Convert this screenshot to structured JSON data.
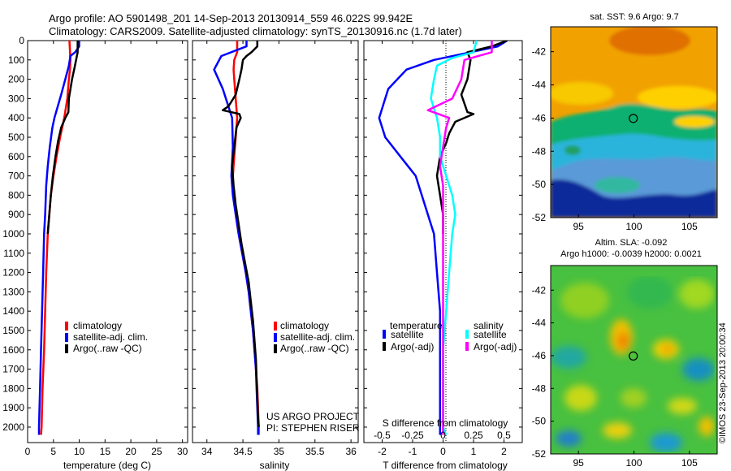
{
  "header": {
    "line1": "Argo profile: AO 5901498_201 14-Sep-2013 20130914_559 46.022S 99.942E",
    "line2": "Climatology: CARS2009. Satellite-adjusted climatology: synTS_20130916.nc (1.7d later)"
  },
  "colors": {
    "climatology": "#ff0000",
    "satellite": "#0000ff",
    "argo": "#000000",
    "sal_satellite": "#00ffff",
    "sal_argo": "#ff00ff"
  },
  "chart_data": [
    {
      "type": "line",
      "panel": "temperature",
      "xlabel": "temperature (deg C)",
      "ylabel": "",
      "xlim": [
        0,
        31
      ],
      "ylim": [
        2080,
        0
      ],
      "y_reversed": true,
      "xticks": [
        0,
        5,
        10,
        15,
        20,
        25,
        30
      ],
      "yticks": [
        0,
        100,
        200,
        300,
        400,
        500,
        600,
        700,
        800,
        900,
        1000,
        1100,
        1200,
        1300,
        1400,
        1500,
        1600,
        1700,
        1800,
        1900,
        2000
      ],
      "legend": [
        "climatology",
        "satellite-adj. clim.",
        "Argo(..raw -QC)"
      ],
      "series": [
        {
          "name": "climatology",
          "color": "#ff0000",
          "points": [
            [
              8.1,
              0
            ],
            [
              8.2,
              50
            ],
            [
              8.3,
              100
            ],
            [
              8.2,
              150
            ],
            [
              8.0,
              200
            ],
            [
              7.7,
              300
            ],
            [
              7.1,
              400
            ],
            [
              6.3,
              500
            ],
            [
              5.6,
              600
            ],
            [
              5.0,
              700
            ],
            [
              4.5,
              800
            ],
            [
              4.2,
              900
            ],
            [
              3.9,
              1000
            ],
            [
              3.6,
              1200
            ],
            [
              3.4,
              1400
            ],
            [
              3.2,
              1600
            ],
            [
              2.9,
              1800
            ],
            [
              2.7,
              2000
            ],
            [
              2.6,
              2040
            ]
          ]
        },
        {
          "name": "satellite-adj. clim.",
          "color": "#0000ff",
          "points": [
            [
              10.0,
              0
            ],
            [
              10.0,
              30
            ],
            [
              9.2,
              60
            ],
            [
              8.3,
              80
            ],
            [
              8.0,
              130
            ],
            [
              7.3,
              200
            ],
            [
              6.5,
              280
            ],
            [
              5.2,
              400
            ],
            [
              4.8,
              450
            ],
            [
              4.3,
              550
            ],
            [
              3.9,
              650
            ],
            [
              3.6,
              750
            ],
            [
              3.4,
              900
            ],
            [
              3.2,
              1000
            ],
            [
              3.0,
              1200
            ],
            [
              2.8,
              1400
            ],
            [
              2.6,
              1600
            ],
            [
              2.4,
              1800
            ],
            [
              2.2,
              2000
            ],
            [
              2.2,
              2040
            ]
          ]
        },
        {
          "name": "Argo(..raw -QC)",
          "color": "#000000",
          "points": [
            [
              9.7,
              0
            ],
            [
              9.7,
              60
            ],
            [
              9.4,
              100
            ],
            [
              9.1,
              140
            ],
            [
              8.6,
              200
            ],
            [
              8.0,
              300
            ],
            [
              7.9,
              370
            ],
            [
              7.3,
              400
            ],
            [
              6.5,
              450
            ],
            [
              5.9,
              520
            ],
            [
              5.4,
              600
            ],
            [
              4.9,
              700
            ],
            [
              4.5,
              800
            ],
            [
              4.2,
              900
            ],
            [
              3.9,
              1000
            ]
          ]
        }
      ]
    },
    {
      "type": "line",
      "panel": "salinity",
      "xlabel": "salinity",
      "ylabel": "",
      "xlim": [
        33.8,
        36.1
      ],
      "ylim": [
        2080,
        0
      ],
      "y_reversed": true,
      "xticks": [
        34,
        34.5,
        35,
        35.5,
        36
      ],
      "xticklabels": [
        "34",
        "34.5",
        "35",
        "35.5",
        "36"
      ],
      "legend": [
        "climatology",
        "satellite-adj. clim.",
        "Argo(..raw -QC)"
      ],
      "annotations": [
        "US ARGO PROJECT",
        "PI: STEPHEN RISER"
      ],
      "series": [
        {
          "name": "climatology",
          "color": "#ff0000",
          "points": [
            [
              34.42,
              0
            ],
            [
              34.42,
              60
            ],
            [
              34.38,
              100
            ],
            [
              34.37,
              150
            ],
            [
              34.38,
              200
            ],
            [
              34.4,
              300
            ],
            [
              34.42,
              400
            ],
            [
              34.4,
              500
            ],
            [
              34.38,
              600
            ],
            [
              34.36,
              700
            ],
            [
              34.37,
              800
            ],
            [
              34.4,
              900
            ],
            [
              34.44,
              1000
            ],
            [
              34.49,
              1100
            ],
            [
              34.54,
              1200
            ],
            [
              34.58,
              1300
            ],
            [
              34.61,
              1400
            ],
            [
              34.64,
              1500
            ],
            [
              34.66,
              1600
            ],
            [
              34.68,
              1700
            ],
            [
              34.7,
              1800
            ],
            [
              34.71,
              1900
            ],
            [
              34.72,
              2000
            ],
            [
              34.72,
              2040
            ]
          ]
        },
        {
          "name": "satellite-adj. clim.",
          "color": "#0000ff",
          "points": [
            [
              34.55,
              0
            ],
            [
              34.55,
              30
            ],
            [
              34.2,
              80
            ],
            [
              34.1,
              150
            ],
            [
              34.22,
              250
            ],
            [
              34.35,
              400
            ],
            [
              34.36,
              550
            ],
            [
              34.34,
              700
            ],
            [
              34.36,
              800
            ],
            [
              34.4,
              900
            ],
            [
              34.44,
              1000
            ],
            [
              34.49,
              1100
            ],
            [
              34.54,
              1200
            ],
            [
              34.58,
              1300
            ],
            [
              34.61,
              1400
            ],
            [
              34.64,
              1500
            ],
            [
              34.66,
              1600
            ],
            [
              34.68,
              1700
            ],
            [
              34.69,
              1800
            ],
            [
              34.7,
              1900
            ],
            [
              34.71,
              2000
            ],
            [
              34.71,
              2040
            ]
          ]
        },
        {
          "name": "Argo(..raw -QC)",
          "color": "#000000",
          "points": [
            [
              34.7,
              0
            ],
            [
              34.7,
              30
            ],
            [
              34.62,
              60
            ],
            [
              34.55,
              80
            ],
            [
              34.5,
              100
            ],
            [
              34.48,
              150
            ],
            [
              34.45,
              200
            ],
            [
              34.4,
              280
            ],
            [
              34.3,
              340
            ],
            [
              34.22,
              360
            ],
            [
              34.45,
              380
            ],
            [
              34.47,
              400
            ],
            [
              34.41,
              450
            ],
            [
              34.38,
              550
            ],
            [
              34.35,
              650
            ],
            [
              34.37,
              750
            ],
            [
              34.4,
              850
            ],
            [
              34.44,
              950
            ],
            [
              34.48,
              1050
            ],
            [
              34.53,
              1150
            ],
            [
              34.58,
              1250
            ],
            [
              34.61,
              1350
            ],
            [
              34.64,
              1450
            ],
            [
              34.66,
              1550
            ],
            [
              34.68,
              1650
            ],
            [
              34.69,
              1750
            ],
            [
              34.7,
              1850
            ],
            [
              34.71,
              1950
            ],
            [
              34.72,
              2000
            ]
          ]
        }
      ]
    },
    {
      "type": "line",
      "panel": "difference",
      "xlabel": "T difference from climatology",
      "xlabel_top": "S difference from climatology",
      "xlim": [
        -2.6,
        2.6
      ],
      "ylim": [
        2080,
        0
      ],
      "y_reversed": true,
      "xticks": [
        -2,
        -1,
        0,
        1,
        2
      ],
      "sticks": [
        "-0.5",
        "-0.25",
        "0",
        "0.25",
        "0.5"
      ],
      "legend_headers": [
        "temperature",
        "salinity"
      ],
      "legend": [
        "satellite",
        "Argo(-adj)",
        "satellite",
        "Argo(-adj)"
      ],
      "series": [
        {
          "name": "temperature satellite",
          "color": "#0000ff",
          "points": [
            [
              2.1,
              0
            ],
            [
              1.8,
              30
            ],
            [
              0.9,
              60
            ],
            [
              -0.3,
              100
            ],
            [
              -1.2,
              150
            ],
            [
              -1.8,
              250
            ],
            [
              -2.1,
              400
            ],
            [
              -1.9,
              500
            ],
            [
              -1.4,
              600
            ],
            [
              -0.9,
              700
            ],
            [
              -0.7,
              800
            ],
            [
              -0.5,
              900
            ],
            [
              -0.3,
              1000
            ],
            [
              -0.2,
              1200
            ],
            [
              -0.1,
              1400
            ],
            [
              -0.1,
              1600
            ],
            [
              -0.1,
              2000
            ],
            [
              -0.1,
              2040
            ]
          ]
        },
        {
          "name": "temperature Argo(-adj)",
          "color": "#000000",
          "points": [
            [
              2.1,
              0
            ],
            [
              1.6,
              30
            ],
            [
              0.8,
              60
            ],
            [
              0.9,
              100
            ],
            [
              0.8,
              200
            ],
            [
              0.6,
              280
            ],
            [
              0.8,
              370
            ],
            [
              1.0,
              380
            ],
            [
              0.4,
              420
            ],
            [
              0.2,
              480
            ],
            [
              0.1,
              530
            ],
            [
              -0.1,
              600
            ],
            [
              -0.2,
              700
            ],
            [
              -0.1,
              800
            ],
            [
              0.0,
              900
            ],
            [
              0.0,
              1000
            ]
          ]
        },
        {
          "name": "salinity satellite",
          "color": "#00ffff",
          "points": [
            [
              1.1,
              0
            ],
            [
              1.0,
              60
            ],
            [
              0.3,
              90
            ],
            [
              -0.2,
              130
            ],
            [
              -0.3,
              200
            ],
            [
              -0.4,
              300
            ],
            [
              -0.2,
              400
            ],
            [
              -0.1,
              500
            ],
            [
              -0.1,
              600
            ],
            [
              0.1,
              700
            ],
            [
              0.3,
              800
            ],
            [
              0.4,
              900
            ],
            [
              0.3,
              1000
            ],
            [
              0.2,
              1200
            ],
            [
              0.1,
              1400
            ],
            [
              0.0,
              1600
            ],
            [
              0.0,
              2000
            ],
            [
              0.1,
              2040
            ]
          ]
        },
        {
          "name": "salinity Argo(-adj)",
          "color": "#ff00ff",
          "points": [
            [
              1.6,
              0
            ],
            [
              1.6,
              60
            ],
            [
              0.7,
              100
            ],
            [
              0.6,
              200
            ],
            [
              0.3,
              300
            ],
            [
              -0.5,
              360
            ],
            [
              0.2,
              400
            ],
            [
              0.1,
              450
            ],
            [
              0.0,
              550
            ],
            [
              -0.1,
              650
            ],
            [
              0.0,
              750
            ],
            [
              0.0,
              850
            ],
            [
              0.0,
              950
            ],
            [
              0.0,
              1050
            ],
            [
              0.0,
              1150
            ],
            [
              0.0,
              1300
            ],
            [
              0.0,
              1500
            ],
            [
              0.0,
              1700
            ],
            [
              0.0,
              1900
            ],
            [
              0.0,
              2040
            ]
          ]
        }
      ]
    },
    {
      "type": "heatmap",
      "panel": "sst_map",
      "title": "sat. SST: 9.6  Argo: 9.7",
      "xlim": [
        92.5,
        107.5
      ],
      "ylim": [
        -52,
        -40.5
      ],
      "xticks": [
        95,
        100,
        105
      ],
      "yticks": [
        -42,
        -44,
        -46,
        -48,
        -50,
        -52
      ],
      "marker": {
        "lon": 99.942,
        "lat": -46.022
      }
    },
    {
      "type": "heatmap",
      "panel": "sla_map",
      "title": "Altim. SLA: -0.092",
      "subtitle": "Argo h1000: -0.0039 h2000: 0.0021",
      "xlim": [
        92.5,
        107.5
      ],
      "ylim": [
        -52,
        -40.5
      ],
      "xticks": [
        95,
        100,
        105
      ],
      "yticks": [
        -42,
        -44,
        -46,
        -48,
        -50,
        -52
      ],
      "marker": {
        "lon": 99.942,
        "lat": -46.022
      }
    }
  ],
  "side_caption": "©IMOS 23-Sep-2013 20:00:34"
}
